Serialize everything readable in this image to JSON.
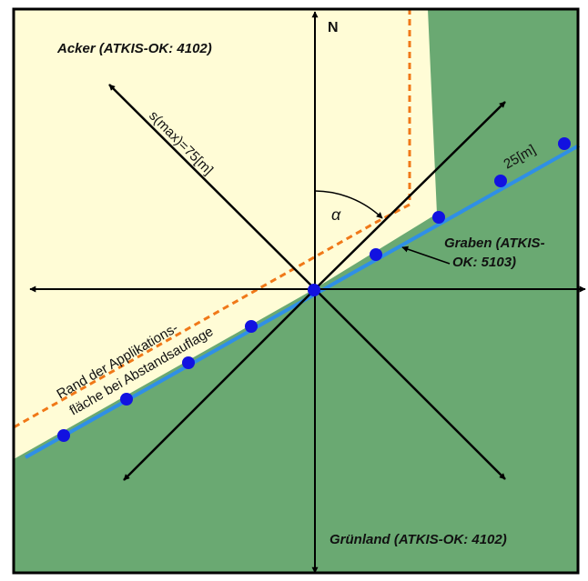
{
  "colors": {
    "field": "#fffcd6",
    "grassland": "#6aa972",
    "ditch": "#2f8fe6",
    "ditch_points": "#1212e0",
    "boundary_dashed": "#f07818",
    "arrows": "#000000",
    "frame": "#000000"
  },
  "labels": {
    "north": "N",
    "field": "Acker (ATKIS-OK: 4102)",
    "grassland": "Grünland (ATKIS-OK: 4102)",
    "ditch_line1": "Graben (ATKIS-",
    "ditch_line2": "OK: 5103)",
    "distance_max": "s(max)=75[m]",
    "angle": "α",
    "spacing": "25[m]",
    "edge_line1": "Rand der Applikations-",
    "edge_line2": "fläche bei Abstandsauflage"
  }
}
